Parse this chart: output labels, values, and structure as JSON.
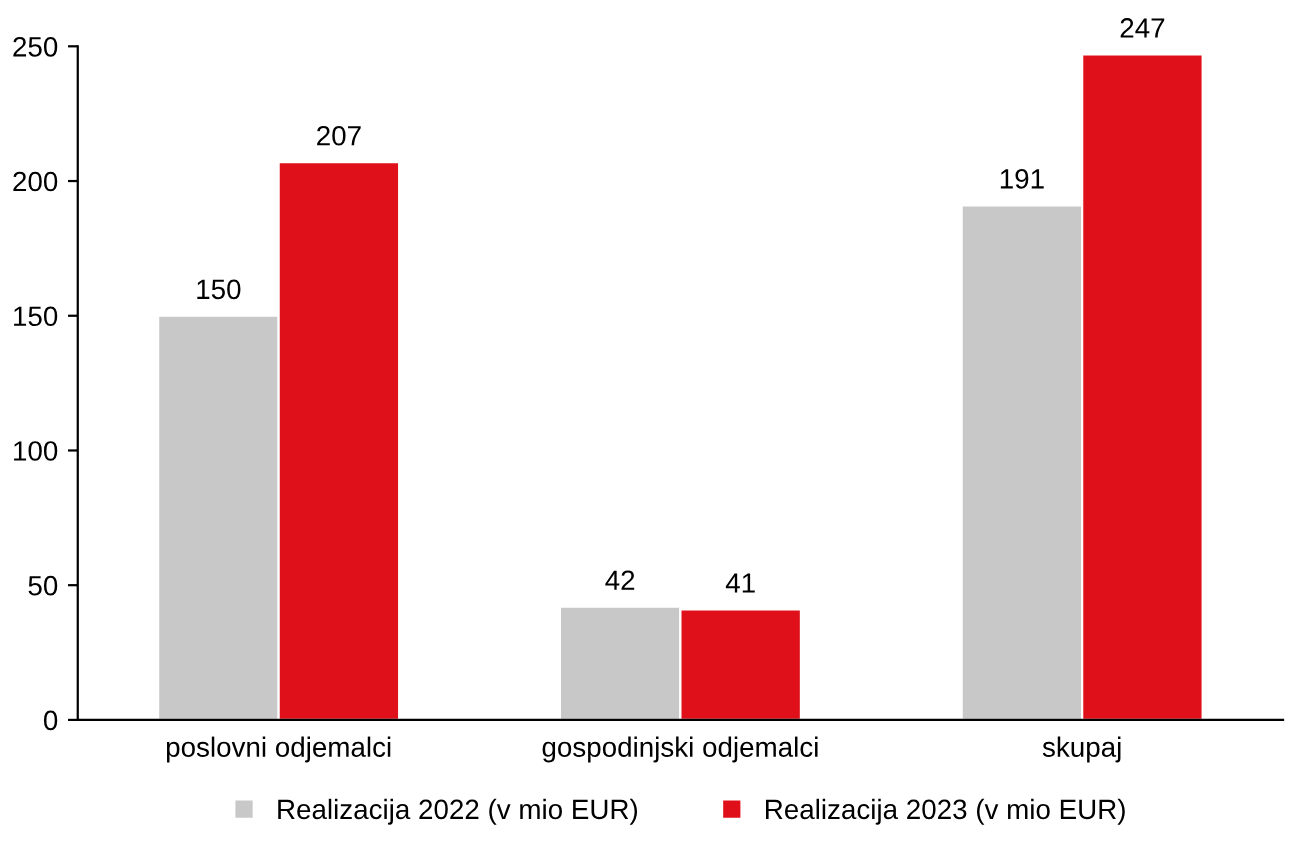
{
  "chart_data": {
    "type": "bar",
    "categories": [
      "poslovni odjemalci",
      "gospodinjski odjemalci",
      "skupaj"
    ],
    "series": [
      {
        "name": "Realizacija 2022 (v mio EUR)",
        "color": "#c8c8c8",
        "values": [
          150,
          42,
          191
        ]
      },
      {
        "name": "Realizacija 2023 (v mio EUR)",
        "color": "#e0101a",
        "values": [
          207,
          41,
          247
        ]
      }
    ],
    "ylim": [
      0,
      250
    ],
    "yticks": [
      0,
      50,
      100,
      150,
      200,
      250
    ],
    "grid": false,
    "legend": "bottom",
    "data_labels": true
  }
}
